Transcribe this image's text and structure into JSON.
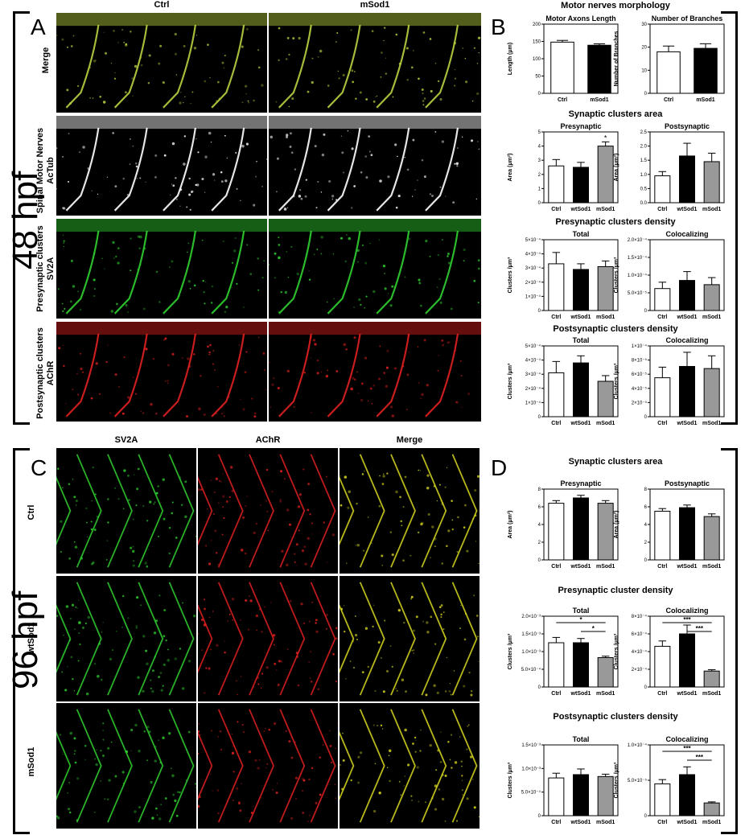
{
  "panelA": {
    "letter": "A",
    "col_headers": [
      "Ctrl",
      "mSod1"
    ],
    "row_labels": [
      "Merge",
      "Spinal Motor Nerves\nAcTub",
      "Presynaptic clusters\nSV2A",
      "Postsynaptic clusters\nAChR"
    ],
    "row_colors": [
      "#b8d040",
      "#ffffff",
      "#30d030",
      "#e02020"
    ]
  },
  "stage48": "48 hpf",
  "stage96": "96 hpf",
  "panelB": {
    "letter": "B",
    "sections": [
      "Motor nerves morphology",
      "Synaptic clusters area",
      "Presynaptic clusters density",
      "Postsynaptic clusters density"
    ]
  },
  "panelC": {
    "letter": "C",
    "col_headers": [
      "SV2A",
      "AChR",
      "Merge"
    ],
    "row_labels": [
      "Ctrl",
      "wtSod1",
      "mSod1"
    ],
    "col_colors": [
      "#30d030",
      "#e02020",
      "#d8d820"
    ]
  },
  "panelD": {
    "letter": "D",
    "sections": [
      "Synaptic clusters area",
      "Presynaptic cluster density",
      "Postsynaptic clusters density"
    ]
  },
  "chart_data": [
    {
      "id": "B1",
      "type": "bar",
      "title": "Motor Axons Length",
      "ylabel": "Length (μm)",
      "categories": [
        "Ctrl",
        "mSod1"
      ],
      "values": [
        148,
        139
      ],
      "errors": [
        5,
        4
      ],
      "ylim": [
        0,
        200
      ],
      "yticks": [
        "0",
        "50",
        "100",
        "150",
        "200"
      ],
      "colors": [
        "#ffffff",
        "#000000"
      ],
      "sig": []
    },
    {
      "id": "B2",
      "type": "bar",
      "title": "Number of Branches",
      "ylabel": "Number of Branches",
      "categories": [
        "Ctrl",
        "mSod1"
      ],
      "values": [
        18,
        19.5
      ],
      "errors": [
        2.5,
        2
      ],
      "ylim": [
        0,
        30
      ],
      "yticks": [
        "0",
        "10",
        "20",
        "30"
      ],
      "colors": [
        "#ffffff",
        "#000000"
      ],
      "sig": []
    },
    {
      "id": "B3",
      "type": "bar",
      "title": "Presynaptic",
      "ylabel": "Area (μm²)",
      "categories": [
        "Ctrl",
        "wtSod1",
        "mSod1"
      ],
      "values": [
        2.6,
        2.5,
        4.0
      ],
      "errors": [
        0.45,
        0.35,
        0.3
      ],
      "ylim": [
        0,
        5
      ],
      "yticks": [
        "0",
        "1",
        "2",
        "3",
        "4",
        "5"
      ],
      "colors": [
        "#ffffff",
        "#000000",
        "#999999"
      ],
      "sig": [
        "*"
      ]
    },
    {
      "id": "B4",
      "type": "bar",
      "title": "Postsynaptic",
      "ylabel": "Area (μm²)",
      "categories": [
        "Ctrl",
        "wtSod1",
        "mSod1"
      ],
      "values": [
        0.95,
        1.65,
        1.45
      ],
      "errors": [
        0.15,
        0.45,
        0.3
      ],
      "ylim": [
        0,
        2.5
      ],
      "yticks": [
        "0.0",
        "0.5",
        "1.0",
        "1.5",
        "2.0",
        "2.5"
      ],
      "colors": [
        "#ffffff",
        "#000000",
        "#999999"
      ],
      "sig": []
    },
    {
      "id": "B5",
      "type": "bar",
      "title": "Total",
      "ylabel": "Clusters /μm³",
      "categories": [
        "Ctrl",
        "wtSod1",
        "mSod1"
      ],
      "values": [
        3.3,
        2.9,
        3.1
      ],
      "errors": [
        0.8,
        0.4,
        0.4
      ],
      "ylim": [
        0,
        5
      ],
      "yticks": [
        "0",
        "1×10⁻⁴",
        "2×10⁻⁴",
        "3×10⁻⁴",
        "4×10⁻⁴",
        "5×10⁻⁴"
      ],
      "colors": [
        "#ffffff",
        "#000000",
        "#999999"
      ],
      "sig": []
    },
    {
      "id": "B6",
      "type": "bar",
      "title": "Colocalizing",
      "ylabel": "Clusters /μm³",
      "categories": [
        "Ctrl",
        "wtSod1",
        "mSod1"
      ],
      "values": [
        0.62,
        0.85,
        0.73
      ],
      "errors": [
        0.18,
        0.25,
        0.2
      ],
      "ylim": [
        0,
        2
      ],
      "yticks": [
        "0",
        "5.0×10⁻⁵",
        "1.0×10⁻⁴",
        "1.5×10⁻⁴",
        "2.0×10⁻⁴"
      ],
      "colors": [
        "#ffffff",
        "#000000",
        "#999999"
      ],
      "sig": []
    },
    {
      "id": "B7",
      "type": "bar",
      "title": "Total",
      "ylabel": "Clusters /μm³",
      "categories": [
        "Ctrl",
        "wtSod1",
        "mSod1"
      ],
      "values": [
        3.1,
        3.8,
        2.5
      ],
      "errors": [
        0.8,
        0.5,
        0.4
      ],
      "ylim": [
        0,
        5
      ],
      "yticks": [
        "0",
        "1×10⁻⁴",
        "2×10⁻⁴",
        "3×10⁻⁴",
        "4×10⁻⁴",
        "5×10⁻⁴"
      ],
      "colors": [
        "#ffffff",
        "#000000",
        "#999999"
      ],
      "sig": []
    },
    {
      "id": "B8",
      "type": "bar",
      "title": "Colocalizing",
      "ylabel": "Clusters /μm³",
      "categories": [
        "Ctrl",
        "wtSod1",
        "mSod1"
      ],
      "values": [
        5.5,
        7.1,
        6.8
      ],
      "errors": [
        1.5,
        2.0,
        1.8
      ],
      "ylim": [
        0,
        10
      ],
      "yticks": [
        "0",
        "2×10⁻⁵",
        "4×10⁻⁵",
        "6×10⁻⁵",
        "8×10⁻⁵",
        "1×10⁻⁴"
      ],
      "colors": [
        "#ffffff",
        "#000000",
        "#999999"
      ],
      "sig": []
    },
    {
      "id": "D1",
      "type": "bar",
      "title": "Presynaptic",
      "ylabel": "Area (μm²)",
      "categories": [
        "Ctrl",
        "wtSod1",
        "mSod1"
      ],
      "values": [
        6.4,
        7.0,
        6.4
      ],
      "errors": [
        0.3,
        0.3,
        0.3
      ],
      "ylim": [
        0,
        8
      ],
      "yticks": [
        "0",
        "2",
        "4",
        "6",
        "8"
      ],
      "colors": [
        "#ffffff",
        "#000000",
        "#999999"
      ],
      "sig": []
    },
    {
      "id": "D2",
      "type": "bar",
      "title": "Postsynaptic",
      "ylabel": "Area (μm²)",
      "categories": [
        "Ctrl",
        "wtSod1",
        "mSod1"
      ],
      "values": [
        5.5,
        5.9,
        4.9
      ],
      "errors": [
        0.3,
        0.3,
        0.3
      ],
      "ylim": [
        0,
        8
      ],
      "yticks": [
        "0",
        "2",
        "4",
        "6",
        "8"
      ],
      "colors": [
        "#ffffff",
        "#000000",
        "#999999"
      ],
      "sig": []
    },
    {
      "id": "D3",
      "type": "bar",
      "title": "Total",
      "ylabel": "Clusters /μm³",
      "categories": [
        "Ctrl",
        "wtSod1",
        "mSod1"
      ],
      "values": [
        1.25,
        1.25,
        0.83
      ],
      "errors": [
        0.15,
        0.12,
        0.04
      ],
      "ylim": [
        0,
        2
      ],
      "yticks": [
        "0",
        "5.0×10⁻⁴",
        "1.0×10⁻³",
        "1.5×10⁻³",
        "2.0×10⁻³"
      ],
      "colors": [
        "#ffffff",
        "#000000",
        "#999999"
      ],
      "sig": [
        "*",
        "*"
      ]
    },
    {
      "id": "D4",
      "type": "bar",
      "title": "Colocalizing",
      "ylabel": "Clusters /μm³",
      "categories": [
        "Ctrl",
        "wtSod1",
        "mSod1"
      ],
      "values": [
        4.6,
        6.0,
        1.8
      ],
      "errors": [
        0.6,
        1.0,
        0.15
      ],
      "ylim": [
        0,
        8
      ],
      "yticks": [
        "0",
        "2×10⁻⁴",
        "4×10⁻⁴",
        "6×10⁻⁴",
        "8×10⁻⁴"
      ],
      "colors": [
        "#ffffff",
        "#000000",
        "#999999"
      ],
      "sig": [
        "***",
        "***"
      ]
    },
    {
      "id": "D5",
      "type": "bar",
      "title": "Total",
      "ylabel": "Clusters /μm³",
      "categories": [
        "Ctrl",
        "wtSod1",
        "mSod1"
      ],
      "values": [
        0.8,
        0.87,
        0.83
      ],
      "errors": [
        0.1,
        0.12,
        0.05
      ],
      "ylim": [
        0,
        1.5
      ],
      "yticks": [
        "0",
        "5.0×10⁻⁴",
        "1.0×10⁻³",
        "1.5×10⁻³"
      ],
      "colors": [
        "#ffffff",
        "#000000",
        "#999999"
      ],
      "sig": []
    },
    {
      "id": "D6",
      "type": "bar",
      "title": "Colocalizing",
      "ylabel": "Clusters /μm³",
      "categories": [
        "Ctrl",
        "wtSod1",
        "mSod1"
      ],
      "values": [
        4.5,
        5.8,
        1.8
      ],
      "errors": [
        0.6,
        1.1,
        0.15
      ],
      "ylim": [
        0,
        10
      ],
      "yticks": [
        "0",
        "5.0×10⁻⁵",
        "1.0×10⁻⁴"
      ],
      "colors": [
        "#ffffff",
        "#000000",
        "#999999"
      ],
      "sig": [
        "***",
        "***"
      ]
    }
  ]
}
